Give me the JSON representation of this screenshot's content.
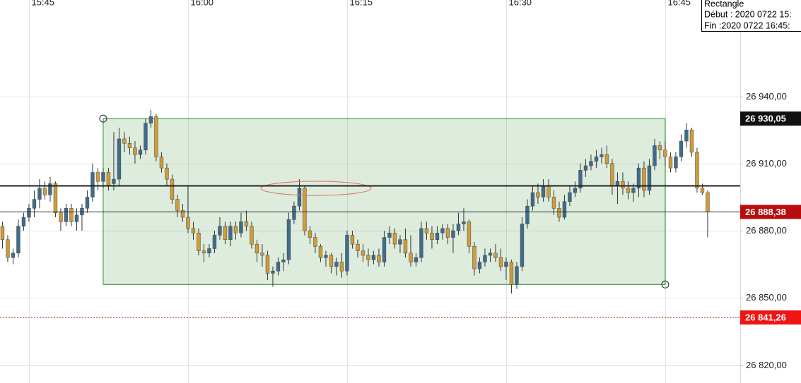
{
  "chart_data": {
    "type": "candlestick",
    "x": [
      942.5,
      943,
      943.5,
      944,
      944.5,
      945,
      945.5,
      946,
      946.5,
      947,
      947.5,
      948,
      948.5,
      949,
      949.5,
      950,
      950.5,
      951,
      951.5,
      952,
      952.5,
      953,
      953.5,
      954,
      954.5,
      955,
      955.5,
      956,
      956.5,
      957,
      957.5,
      958,
      958.5,
      959,
      959.5,
      960,
      960.5,
      961,
      961.5,
      962,
      962.5,
      963,
      963.5,
      964,
      964.5,
      965,
      965.5,
      966,
      966.5,
      967,
      967.5,
      968,
      968.5,
      969,
      969.5,
      970,
      970.5,
      971,
      971.5,
      972,
      972.5,
      973,
      973.5,
      974,
      974.5,
      975,
      975.5,
      976,
      976.5,
      977,
      977.5,
      978,
      978.5,
      979,
      979.5,
      980,
      980.5,
      981,
      981.5,
      982,
      982.5,
      983,
      983.5,
      984,
      984.5,
      985,
      985.5,
      986,
      986.5,
      987,
      987.5,
      988,
      988.5,
      989,
      989.5,
      990,
      990.5,
      991,
      991.5,
      992,
      992.5,
      993,
      993.5,
      994,
      994.5,
      995,
      995.5,
      996,
      996.5,
      997,
      997.5,
      998,
      998.5,
      999,
      999.5,
      1000,
      1000.5,
      1001,
      1001.5,
      1002,
      1002.5,
      1003,
      1003.5,
      1004,
      1004.5,
      1005,
      1005.5,
      1006,
      1006.5,
      1007,
      1007.5,
      1008,
      1008.5,
      1009
    ],
    "open": [
      26882,
      26876,
      26868,
      26870,
      26882,
      26886,
      26890,
      26894,
      26899,
      26896,
      26901,
      26888,
      26884,
      26890,
      26884,
      26887,
      26890,
      26895,
      26906,
      26902,
      26906,
      26901,
      26903,
      26921,
      26919,
      26917,
      26914,
      26916,
      26928,
      26931,
      26913,
      26908,
      26903,
      26894,
      26889,
      26886,
      26881,
      26879,
      26871,
      26870,
      26872,
      26878,
      26882,
      26876,
      26882,
      26879,
      26884,
      26882,
      26874,
      26870,
      26869,
      26861,
      26862,
      26866,
      26867,
      26885,
      26891,
      26899,
      26880,
      26877,
      26873,
      26868,
      26869,
      26864,
      26866,
      26862,
      26878,
      26874,
      26871,
      26869,
      26867,
      26869,
      26866,
      26877,
      26879,
      26874,
      26876,
      26870,
      26866,
      26868,
      26881,
      26879,
      26876,
      26879,
      26881,
      26877,
      26880,
      26883,
      26884,
      26873,
      26863,
      26866,
      26869,
      26870,
      26868,
      26864,
      26866,
      26856,
      26864,
      26883,
      26891,
      26897,
      26895,
      26900,
      26895,
      26890,
      26886,
      26893,
      26897,
      26899,
      26907,
      26909,
      26911,
      26913,
      26914,
      26910,
      26900,
      26902,
      26899,
      26897,
      26899,
      26908,
      26898,
      26909,
      26918,
      26916,
      26913,
      26908,
      26913,
      26920,
      26925,
      26915,
      26899,
      26897
    ],
    "high": [
      26884,
      26878,
      26872,
      26885,
      26888,
      26892,
      26898,
      26903,
      26902,
      26904,
      26902,
      26890,
      26892,
      26892,
      26890,
      26892,
      26898,
      26910,
      26908,
      26908,
      26908,
      26924,
      26926,
      26924,
      26922,
      26920,
      26918,
      26930,
      26934,
      26932,
      26915,
      26910,
      26905,
      26896,
      26892,
      26900,
      26884,
      26881,
      26874,
      26874,
      26880,
      26886,
      26884,
      26884,
      26884,
      26888,
      26889,
      26884,
      26876,
      26874,
      26871,
      26864,
      26868,
      26870,
      26888,
      26893,
      26903,
      26900,
      26882,
      26879,
      26874,
      26871,
      26870,
      26868,
      26870,
      26880,
      26880,
      26876,
      26874,
      26872,
      26871,
      26872,
      26880,
      26882,
      26881,
      26878,
      26881,
      26878,
      26870,
      26884,
      26884,
      26882,
      26882,
      26883,
      26883,
      26883,
      26888,
      26890,
      26885,
      26875,
      26868,
      26872,
      26872,
      26874,
      26872,
      26868,
      26867,
      26866,
      26886,
      26894,
      26900,
      26901,
      26903,
      26903,
      26898,
      26893,
      26896,
      26900,
      26902,
      26910,
      26912,
      26914,
      26916,
      26917,
      26918,
      26912,
      26906,
      26906,
      26902,
      26901,
      26910,
      26911,
      26912,
      26921,
      26920,
      26920,
      26915,
      26915,
      26923,
      26928,
      26926,
      26917,
      26901,
      26898
    ],
    "low": [
      26872,
      26866,
      26865,
      26868,
      26880,
      26884,
      26886,
      26890,
      26894,
      26893,
      26886,
      26880,
      26882,
      26882,
      26880,
      26880,
      26888,
      26893,
      26898,
      26899,
      26898,
      26898,
      26900,
      26915,
      26914,
      26910,
      26912,
      26914,
      26926,
      26911,
      26906,
      26900,
      26892,
      26886,
      26884,
      26879,
      26876,
      26869,
      26866,
      26868,
      26870,
      26876,
      26874,
      26873,
      26876,
      26877,
      26880,
      26872,
      26866,
      26864,
      26858,
      26855,
      26860,
      26862,
      26865,
      26883,
      26889,
      26878,
      26874,
      26870,
      26866,
      26864,
      26861,
      26860,
      26859,
      26860,
      26872,
      26868,
      26866,
      26864,
      26865,
      26864,
      26864,
      26874,
      26872,
      26870,
      26868,
      26864,
      26864,
      26866,
      26876,
      26872,
      26874,
      26876,
      26874,
      26870,
      26878,
      26880,
      26870,
      26860,
      26861,
      26864,
      26866,
      26866,
      26862,
      26858,
      26852,
      26854,
      26862,
      26881,
      26889,
      26892,
      26893,
      26893,
      26887,
      26884,
      26885,
      26891,
      26895,
      26897,
      26904,
      26907,
      26908,
      26910,
      26908,
      26896,
      26892,
      26896,
      26894,
      26893,
      26895,
      26895,
      26896,
      26907,
      26912,
      26909,
      26906,
      26906,
      26911,
      26917,
      26913,
      26897,
      26896,
      26877
    ],
    "close": [
      26876,
      26868,
      26870,
      26882,
      26886,
      26890,
      26894,
      26899,
      26896,
      26901,
      26888,
      26884,
      26890,
      26884,
      26887,
      26890,
      26895,
      26906,
      26902,
      26906,
      26900,
      26903,
      26921,
      26919,
      26917,
      26914,
      26916,
      26928,
      26931,
      26913,
      26908,
      26903,
      26894,
      26889,
      26886,
      26881,
      26879,
      26871,
      26870,
      26872,
      26878,
      26882,
      26876,
      26882,
      26879,
      26884,
      26882,
      26874,
      26870,
      26869,
      26861,
      26862,
      26866,
      26867,
      26885,
      26891,
      26899,
      26880,
      26877,
      26873,
      26868,
      26869,
      26864,
      26866,
      26862,
      26878,
      26874,
      26871,
      26869,
      26867,
      26869,
      26866,
      26877,
      26879,
      26874,
      26876,
      26870,
      26866,
      26868,
      26881,
      26879,
      26876,
      26879,
      26881,
      26877,
      26880,
      26883,
      26884,
      26873,
      26863,
      26866,
      26869,
      26870,
      26868,
      26864,
      26866,
      26856,
      26864,
      26883,
      26891,
      26897,
      26895,
      26900,
      26895,
      26890,
      26886,
      26893,
      26897,
      26899,
      26907,
      26909,
      26911,
      26913,
      26914,
      26910,
      26900,
      26902,
      26899,
      26897,
      26899,
      26908,
      26898,
      26909,
      26918,
      26916,
      26913,
      26908,
      26913,
      26920,
      26925,
      26915,
      26899,
      26897,
      26888.38
    ],
    "up_color": "#3e6c8c",
    "down_color": "#d09c36",
    "xlim": [
      942.27,
      1012.07
    ],
    "xticks": [
      {
        "value": 945,
        "label": "15:45"
      },
      {
        "value": 960,
        "label": "16:00"
      },
      {
        "value": 975,
        "label": "16:15"
      },
      {
        "value": 990,
        "label": "16:30"
      },
      {
        "value": 1005,
        "label": "16:45"
      }
    ],
    "ylim": [
      26812,
      26983
    ],
    "yticks": [
      {
        "value": 26820,
        "label": "26 820,00"
      },
      {
        "value": 26850,
        "label": "26 850,00"
      },
      {
        "value": 26880,
        "label": "26 880,00"
      },
      {
        "value": 26910,
        "label": "26 910,00"
      },
      {
        "value": 26940,
        "label": "26 940,00"
      }
    ],
    "grid": true,
    "hlines": [
      {
        "value": 26900,
        "color": "#222222",
        "style": "bold"
      },
      {
        "value": 26888.38,
        "color": "#222222",
        "style": "solid"
      },
      {
        "value": 26841.26,
        "color": "#e01010",
        "style": "dotted"
      }
    ],
    "price_labels": [
      {
        "value": 26930.05,
        "label": "26 930,05",
        "color": "#111111"
      },
      {
        "value": 26888.38,
        "label": "26 888,38",
        "color": "#b80d0d"
      },
      {
        "value": 26841.26,
        "label": "26 841,26",
        "color": "#ee1515"
      }
    ],
    "rectangle": {
      "x0": 952,
      "x1": 1005,
      "top": 26930.05,
      "bottom": 26856,
      "color": "#2e8b2e"
    },
    "tooltip": {
      "title": "Rectangle",
      "start": "Début : 2020 0722 15:",
      "end": "Fin :2020 0722 16:45:"
    }
  }
}
